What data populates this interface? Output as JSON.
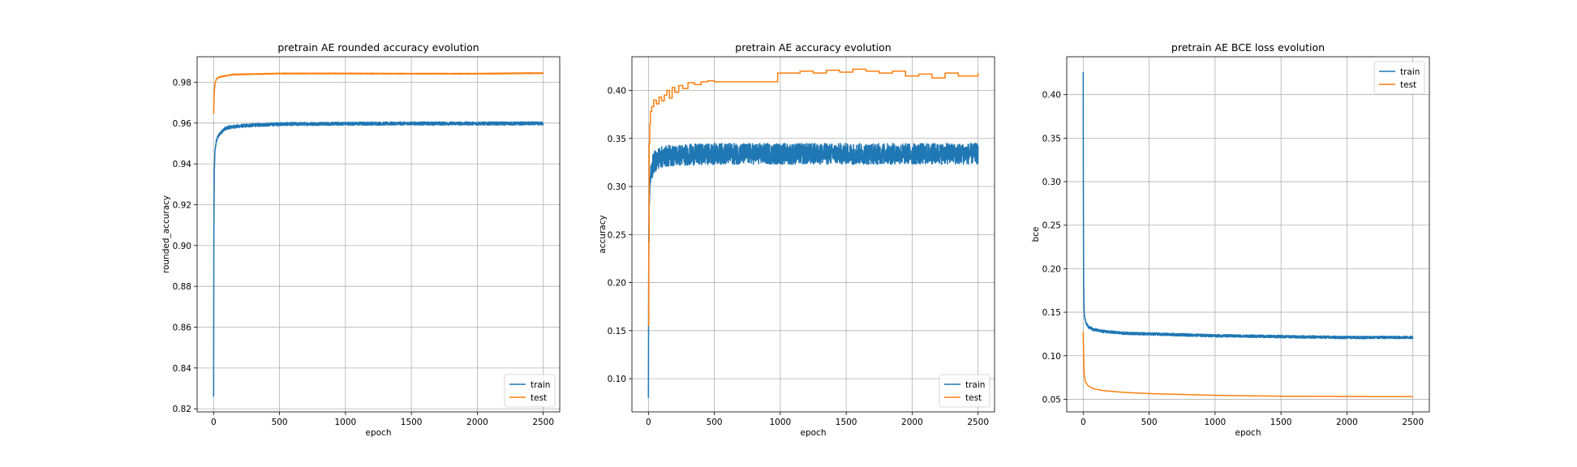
{
  "colors": {
    "train": "#1f77b4",
    "test": "#ff7f0e",
    "grid": "#b0b0b0"
  },
  "chart_data": [
    {
      "type": "line",
      "title": "pretrain AE rounded accuracy evolution",
      "xlabel": "epoch",
      "ylabel": "rounded_accuracy",
      "xlim": [
        -125,
        2625
      ],
      "ylim": [
        0.8185,
        0.9925
      ],
      "xticks": [
        0,
        500,
        1000,
        1500,
        2000,
        2500
      ],
      "xtick_labels": [
        "0",
        "500",
        "1000",
        "1500",
        "2000",
        "2500"
      ],
      "yticks": [
        0.82,
        0.84,
        0.86,
        0.88,
        0.9,
        0.92,
        0.94,
        0.96,
        0.98
      ],
      "ytick_labels": [
        "0.82",
        "0.84",
        "0.86",
        "0.88",
        "0.90",
        "0.92",
        "0.94",
        "0.96",
        "0.98"
      ],
      "grid": true,
      "legend": "lower-right",
      "legend_labels": [
        "train",
        "test"
      ],
      "series": [
        {
          "name": "train",
          "noise": 0.0008,
          "x": [
            0,
            2,
            5,
            10,
            20,
            30,
            50,
            80,
            120,
            200,
            300,
            500,
            1000,
            1500,
            2000,
            2500
          ],
          "y": [
            0.826,
            0.905,
            0.935,
            0.946,
            0.951,
            0.953,
            0.955,
            0.957,
            0.958,
            0.9585,
            0.959,
            0.9595,
            0.9597,
            0.9598,
            0.9598,
            0.9598
          ]
        },
        {
          "name": "test",
          "noise": 0.0002,
          "x": [
            0,
            5,
            10,
            20,
            40,
            80,
            150,
            300,
            500,
            1000,
            1500,
            2000,
            2500
          ],
          "y": [
            0.9645,
            0.975,
            0.979,
            0.9815,
            0.9825,
            0.983,
            0.9838,
            0.984,
            0.9843,
            0.9843,
            0.9842,
            0.9842,
            0.9845
          ]
        }
      ]
    },
    {
      "type": "line",
      "title": "pretrain AE accuracy evolution",
      "xlabel": "epoch",
      "ylabel": "accuracy",
      "xlim": [
        -125,
        2625
      ],
      "ylim": [
        0.0655,
        0.435
      ],
      "xticks": [
        0,
        500,
        1000,
        1500,
        2000,
        2500
      ],
      "xtick_labels": [
        "0",
        "500",
        "1000",
        "1500",
        "2000",
        "2500"
      ],
      "yticks": [
        0.1,
        0.15,
        0.2,
        0.25,
        0.3,
        0.35,
        0.4
      ],
      "ytick_labels": [
        "0.10",
        "0.15",
        "0.20",
        "0.25",
        "0.30",
        "0.35",
        "0.40"
      ],
      "grid": true,
      "legend": "lower-right",
      "legend_labels": [
        "train",
        "test"
      ],
      "series": [
        {
          "name": "train",
          "noise": 0.011,
          "x": [
            0,
            2,
            5,
            10,
            20,
            40,
            80,
            150,
            300,
            500,
            1000,
            1500,
            2000,
            2500
          ],
          "y": [
            0.08,
            0.2,
            0.27,
            0.3,
            0.315,
            0.325,
            0.33,
            0.332,
            0.333,
            0.334,
            0.334,
            0.334,
            0.334,
            0.334
          ]
        },
        {
          "name": "test",
          "noise": 0,
          "step": true,
          "x": [
            0,
            3,
            6,
            10,
            15,
            25,
            40,
            60,
            80,
            100,
            120,
            140,
            160,
            180,
            200,
            230,
            260,
            300,
            350,
            400,
            450,
            500,
            970,
            980,
            1150,
            1250,
            1350,
            1450,
            1550,
            1650,
            1750,
            1850,
            1950,
            2050,
            2150,
            2250,
            2350,
            2500
          ],
          "y": [
            0.155,
            0.243,
            0.345,
            0.365,
            0.378,
            0.383,
            0.39,
            0.386,
            0.393,
            0.389,
            0.395,
            0.4,
            0.392,
            0.403,
            0.398,
            0.405,
            0.402,
            0.408,
            0.406,
            0.409,
            0.41,
            0.409,
            0.409,
            0.418,
            0.42,
            0.418,
            0.421,
            0.419,
            0.422,
            0.42,
            0.418,
            0.42,
            0.415,
            0.417,
            0.413,
            0.418,
            0.415,
            0.418
          ]
        }
      ]
    },
    {
      "type": "line",
      "title": "pretrain AE BCE loss evolution",
      "xlabel": "epoch",
      "ylabel": "bce",
      "xlim": [
        -125,
        2625
      ],
      "ylim": [
        0.0355,
        0.4435
      ],
      "xticks": [
        0,
        500,
        1000,
        1500,
        2000,
        2500
      ],
      "xtick_labels": [
        "0",
        "500",
        "1000",
        "1500",
        "2000",
        "2500"
      ],
      "yticks": [
        0.05,
        0.1,
        0.15,
        0.2,
        0.25,
        0.3,
        0.35,
        0.4
      ],
      "ytick_labels": [
        "0.05",
        "0.10",
        "0.15",
        "0.20",
        "0.25",
        "0.30",
        "0.35",
        "0.40"
      ],
      "grid": true,
      "legend": "upper-right",
      "legend_labels": [
        "train",
        "test"
      ],
      "series": [
        {
          "name": "train",
          "noise": 0.0015,
          "x": [
            0,
            1,
            3,
            6,
            10,
            20,
            40,
            80,
            150,
            300,
            500,
            1000,
            1500,
            2000,
            2500
          ],
          "y": [
            0.426,
            0.3,
            0.19,
            0.155,
            0.145,
            0.138,
            0.133,
            0.13,
            0.128,
            0.126,
            0.125,
            0.123,
            0.122,
            0.121,
            0.121
          ]
        },
        {
          "name": "test",
          "noise": 0,
          "x": [
            0,
            5,
            10,
            20,
            40,
            80,
            150,
            300,
            500,
            1000,
            1500,
            2000,
            2500
          ],
          "y": [
            0.128,
            0.085,
            0.075,
            0.069,
            0.065,
            0.062,
            0.06,
            0.058,
            0.0565,
            0.0545,
            0.0535,
            0.0532,
            0.053
          ]
        }
      ]
    }
  ]
}
